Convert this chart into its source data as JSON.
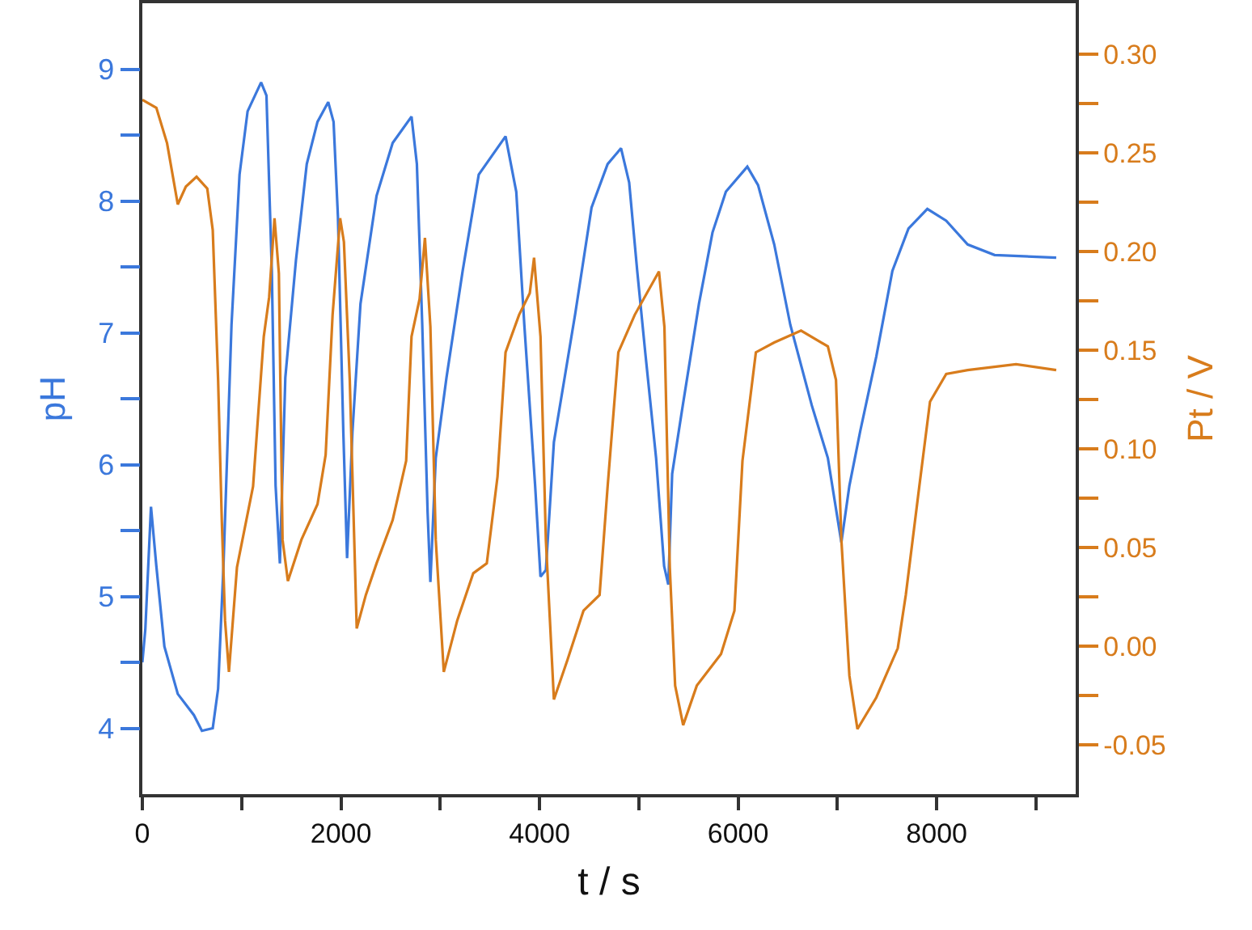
{
  "chart_data": {
    "type": "line",
    "xlabel": "t / s",
    "ylabel": "pH",
    "y2label": "Pt / V",
    "grid": false,
    "xlim": [
      0,
      9400
    ],
    "xticks": [
      0,
      {
        "value": 1000,
        "label": null
      },
      2000,
      {
        "value": 3000,
        "label": null
      },
      4000,
      {
        "value": 5000,
        "label": null
      },
      6000,
      {
        "value": 7000,
        "label": null
      },
      8000,
      {
        "value": 9000,
        "label": null
      }
    ],
    "ylim": [
      3.5,
      9.5
    ],
    "yticks": [
      4,
      {
        "value": 4.5,
        "label": null
      },
      5,
      {
        "value": 5.5,
        "label": null
      },
      6,
      {
        "value": 6.5,
        "label": null
      },
      7,
      {
        "value": 7.5,
        "label": null
      },
      8,
      {
        "value": 8.5,
        "label": null
      },
      9
    ],
    "y2lim": [
      -0.075,
      0.326
    ],
    "y2ticks": [
      {
        "value": -0.05,
        "label": "-0.05"
      },
      {
        "value": -0.025,
        "label": null
      },
      {
        "value": 0,
        "label": "0.00"
      },
      {
        "value": 0.025,
        "label": null
      },
      {
        "value": 0.05,
        "label": "0.05"
      },
      {
        "value": 0.075,
        "label": null
      },
      {
        "value": 0.1,
        "label": "0.10"
      },
      {
        "value": 0.125,
        "label": null
      },
      {
        "value": 0.15,
        "label": "0.15"
      },
      {
        "value": 0.175,
        "label": null
      },
      {
        "value": 0.2,
        "label": "0.20"
      },
      {
        "value": 0.225,
        "label": null
      },
      {
        "value": 0.25,
        "label": "0.25"
      },
      {
        "value": 0.275,
        "label": null
      },
      {
        "value": 0.3,
        "label": "0.30"
      }
    ],
    "series": [
      {
        "color": "#3b78dc",
        "x": [
          0,
          30,
          87,
          141,
          222,
          357,
          519,
          600,
          709,
          763,
          817,
          898,
          979,
          1060,
          1196,
          1250,
          1304,
          1342,
          1385,
          1440,
          1547,
          1656,
          1764,
          1872,
          1926,
          1970,
          2024,
          2062,
          2116,
          2197,
          2359,
          2521,
          2711,
          2765,
          2819,
          2873,
          2901,
          2955,
          3063,
          3226,
          3388,
          3658,
          3766,
          3847,
          3956,
          4010,
          4064,
          4145,
          4253,
          4361,
          4524,
          4686,
          4821,
          4903,
          4984,
          5065,
          5174,
          5255,
          5297,
          5336,
          5443,
          5606,
          5742,
          5877,
          6093,
          6201,
          6364,
          6526,
          6742,
          6904,
          7040,
          7121,
          7229,
          7392,
          7554,
          7716,
          7906,
          8096,
          8312,
          8583,
          9204
        ],
        "values": [
          4.5,
          4.75,
          5.68,
          5.23,
          4.62,
          4.26,
          4.1,
          3.98,
          4.0,
          4.3,
          5.23,
          7.06,
          8.2,
          8.68,
          8.9,
          8.8,
          7.47,
          5.84,
          5.25,
          6.66,
          7.55,
          8.28,
          8.6,
          8.75,
          8.6,
          7.88,
          6.25,
          5.29,
          6.25,
          7.22,
          8.04,
          8.44,
          8.64,
          8.28,
          7.06,
          5.64,
          5.11,
          6.05,
          6.66,
          7.47,
          8.2,
          8.49,
          8.07,
          7.06,
          5.84,
          5.15,
          5.2,
          6.17,
          6.66,
          7.15,
          7.95,
          8.28,
          8.4,
          8.14,
          7.47,
          6.85,
          6.05,
          5.23,
          5.09,
          5.93,
          6.45,
          7.22,
          7.76,
          8.07,
          8.26,
          8.12,
          7.67,
          7.06,
          6.45,
          6.05,
          5.41,
          5.84,
          6.25,
          6.82,
          7.47,
          7.79,
          7.94,
          7.85,
          7.67,
          7.59,
          7.57
        ]
      },
      {
        "color": "#d87c1c",
        "axis": "y2",
        "x": [
          0,
          141,
          249,
          357,
          438,
          546,
          654,
          709,
          763,
          800,
          833,
          872,
          953,
          1115,
          1223,
          1277,
          1331,
          1375,
          1412,
          1466,
          1602,
          1764,
          1846,
          1916,
          1992,
          2030,
          2089,
          2159,
          2251,
          2359,
          2521,
          2657,
          2711,
          2792,
          2846,
          2901,
          2955,
          3036,
          3171,
          3333,
          3469,
          3577,
          3658,
          3794,
          3902,
          3945,
          4010,
          4064,
          4145,
          4281,
          4443,
          4605,
          4686,
          4794,
          4959,
          5203,
          5258,
          5312,
          5366,
          5447,
          5584,
          5828,
          5963,
          6044,
          6179,
          6364,
          6634,
          6904,
          6986,
          7040,
          7121,
          7202,
          7392,
          7608,
          7689,
          7825,
          7933,
          8096,
          8312,
          8799,
          9204
        ],
        "values": [
          0.277,
          0.273,
          0.255,
          0.224,
          0.233,
          0.238,
          0.232,
          0.211,
          0.135,
          0.064,
          0.013,
          -0.013,
          0.04,
          0.081,
          0.157,
          0.177,
          0.217,
          0.189,
          0.054,
          0.033,
          0.054,
          0.072,
          0.097,
          0.168,
          0.217,
          0.205,
          0.135,
          0.009,
          0.026,
          0.042,
          0.064,
          0.094,
          0.157,
          0.176,
          0.207,
          0.162,
          0.054,
          -0.013,
          0.013,
          0.037,
          0.042,
          0.086,
          0.149,
          0.168,
          0.179,
          0.197,
          0.157,
          0.054,
          -0.027,
          -0.007,
          0.018,
          0.026,
          0.081,
          0.149,
          0.168,
          0.19,
          0.162,
          0.04,
          -0.02,
          -0.04,
          -0.02,
          -0.004,
          0.018,
          0.094,
          0.149,
          0.154,
          0.16,
          0.152,
          0.135,
          0.054,
          -0.015,
          -0.042,
          -0.026,
          -0.001,
          0.026,
          0.081,
          0.124,
          0.138,
          0.14,
          0.143,
          0.14
        ]
      }
    ]
  }
}
